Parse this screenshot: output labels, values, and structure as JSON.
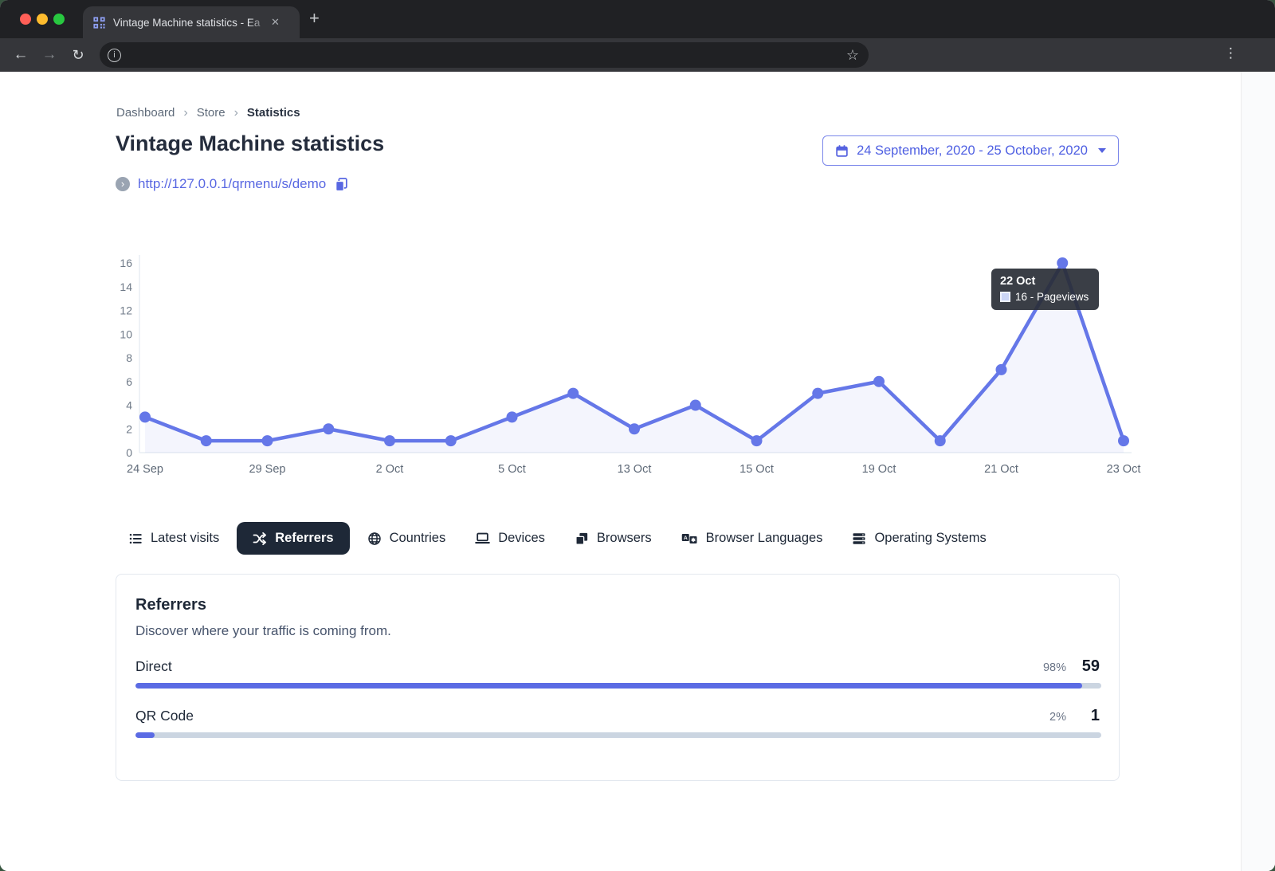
{
  "browser": {
    "tab_title": "Vintage Machine statistics - Ea",
    "icons": {
      "back": "←",
      "forward": "→",
      "reload": "↻",
      "info": "i",
      "star": "☆",
      "menu": "⋮",
      "close": "✕",
      "new_tab": "+"
    }
  },
  "page": {
    "breadcrumb": {
      "items": [
        "Dashboard",
        "Store",
        "Statistics"
      ],
      "separator": "›"
    },
    "title": "Vintage Machine statistics",
    "date_range": "24 September, 2020 - 25 October, 2020",
    "store_url": "http://127.0.0.1/qrmenu/s/demo",
    "link_chevron": "›",
    "tabs": [
      {
        "label": "Latest visits",
        "icon": "list-icon",
        "active": false
      },
      {
        "label": "Referrers",
        "icon": "shuffle-icon",
        "active": true
      },
      {
        "label": "Countries",
        "icon": "globe-icon",
        "active": false
      },
      {
        "label": "Devices",
        "icon": "laptop-icon",
        "active": false
      },
      {
        "label": "Browsers",
        "icon": "browser-windows-icon",
        "active": false
      },
      {
        "label": "Browser Languages",
        "icon": "translate-icon",
        "active": false
      },
      {
        "label": "Operating Systems",
        "icon": "server-stack-icon",
        "active": false
      }
    ],
    "referrers_card": {
      "title": "Referrers",
      "subtitle": "Discover where your traffic is coming from.",
      "rows": [
        {
          "label": "Direct",
          "percent": "98%",
          "value": "59",
          "bar_percent": 98
        },
        {
          "label": "QR Code",
          "percent": "2%",
          "value": "1",
          "bar_percent": 2
        }
      ]
    }
  },
  "chart_data": {
    "type": "line",
    "title": "",
    "xlabel": "",
    "ylabel": "",
    "series": [
      {
        "name": "Pageviews",
        "values": [
          3,
          1,
          1,
          2,
          1,
          1,
          3,
          5,
          2,
          4,
          1,
          5,
          6,
          1,
          7,
          16,
          1
        ]
      }
    ],
    "x_tick_labels": [
      "24 Sep",
      "29 Sep",
      "2 Oct",
      "5 Oct",
      "13 Oct",
      "15 Oct",
      "19 Oct",
      "21 Oct",
      "23 Oct"
    ],
    "x_label_every": 2,
    "y_ticks": [
      0,
      2,
      4,
      6,
      8,
      10,
      12,
      14,
      16
    ],
    "ylim": [
      0,
      16
    ],
    "grid": false,
    "legend": "none",
    "line_color": "#6577e8",
    "fill_color": "rgba(101,119,232,0.07)",
    "axis_color": "#e9edf4",
    "tick_color": "#6f7a88",
    "tooltip": {
      "title": "22 Oct",
      "label": "16 - Pageviews",
      "point_index": 15
    }
  },
  "colors": {
    "accent_indigo": "#5b6be4",
    "dark_navy": "#1e2837",
    "bar_track": "#cbd5e1",
    "chrome_dark": "#202124",
    "chrome_mid": "#35363a"
  }
}
